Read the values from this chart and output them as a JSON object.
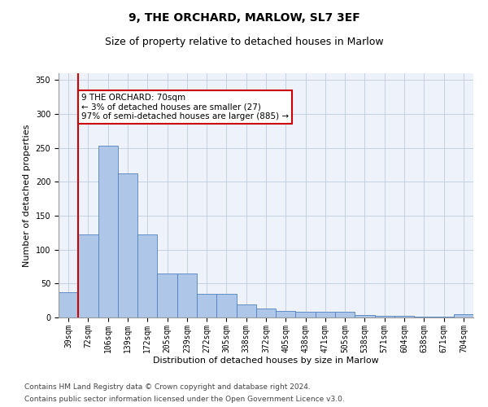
{
  "title": "9, THE ORCHARD, MARLOW, SL7 3EF",
  "subtitle": "Size of property relative to detached houses in Marlow",
  "xlabel": "Distribution of detached houses by size in Marlow",
  "ylabel": "Number of detached properties",
  "categories": [
    "39sqm",
    "72sqm",
    "106sqm",
    "139sqm",
    "172sqm",
    "205sqm",
    "239sqm",
    "272sqm",
    "305sqm",
    "338sqm",
    "372sqm",
    "405sqm",
    "438sqm",
    "471sqm",
    "505sqm",
    "538sqm",
    "571sqm",
    "604sqm",
    "638sqm",
    "671sqm",
    "704sqm"
  ],
  "values": [
    37,
    123,
    253,
    212,
    123,
    65,
    65,
    35,
    35,
    19,
    13,
    10,
    9,
    9,
    8,
    4,
    2,
    2,
    1,
    1,
    5
  ],
  "bar_color": "#aec6e8",
  "bar_edge_color": "#4f81bd",
  "highlight_color": "#cc0000",
  "annotation_text": "9 THE ORCHARD: 70sqm\n← 3% of detached houses are smaller (27)\n97% of semi-detached houses are larger (885) →",
  "annotation_box_color": "#ffffff",
  "annotation_box_edge": "#cc0000",
  "ylim": [
    0,
    360
  ],
  "yticks": [
    0,
    50,
    100,
    150,
    200,
    250,
    300,
    350
  ],
  "bg_color": "#edf2fb",
  "footer1": "Contains HM Land Registry data © Crown copyright and database right 2024.",
  "footer2": "Contains public sector information licensed under the Open Government Licence v3.0.",
  "title_fontsize": 10,
  "subtitle_fontsize": 9,
  "axis_label_fontsize": 8,
  "tick_fontsize": 7,
  "annotation_fontsize": 7.5,
  "footer_fontsize": 6.5
}
